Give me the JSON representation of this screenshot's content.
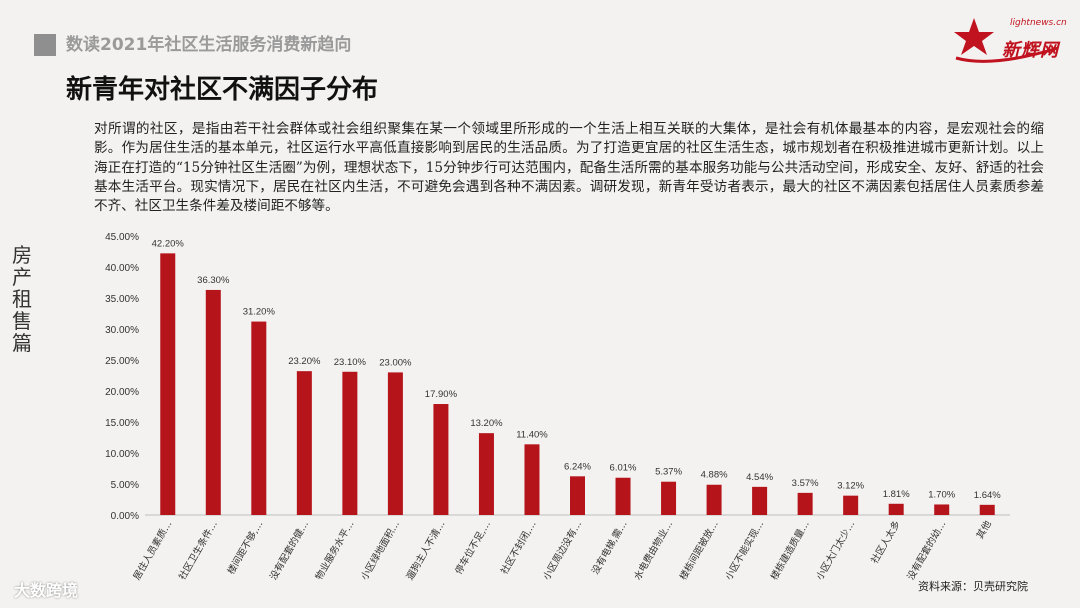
{
  "header": {
    "section_title": "数读2021年社区生活服务消费新趋向",
    "page_title": "新青年对社区不满因子分布"
  },
  "logo": {
    "url_text": "lightnews.cn",
    "name": "新辉网"
  },
  "intro": "对所谓的社区，是指由若干社会群体或社会组织聚集在某一个领域里所形成的一个生活上相互关联的大集体，是社会有机体最基本的内容，是宏观社会的缩影。作为居住生活的基本单元，社区运行水平高低直接影响到居民的生活品质。为了打造更宜居的社区生活生态，城市规划者在积极推进城市更新计划。以上海正在打造的“15分钟社区生活圈”为例，理想状态下，15分钟步行可达范围内，配备生活所需的基本服务功能与公共活动空间，形成安全、友好、舒适的社会基本生活平台。现实情况下，居民在社区内生活，不可避免会遇到各种不满因素。调研发现，新青年受访者表示，最大的社区不满因素包括居住人员素质参差不齐、社区卫生条件差及楼间距不够等。",
  "side_label": "房产租售篇",
  "source": "资料来源：贝壳研究院",
  "watermark": "大数跨境",
  "chart_data": {
    "type": "bar",
    "categories": [
      "居住人员素质…",
      "社区卫生条件…",
      "楼间距不够,…",
      "没有配套的健…",
      "物业服务水平…",
      "小区绿地面积…",
      "遛狗主人不清…",
      "停车位不足,…",
      "社区不封闭,…",
      "小区周边没有…",
      "没有电梯,需…",
      "水电费由物业…",
      "楼栋间距被放…",
      "小区不能实现…",
      "楼栋建造质量…",
      "小区大门太少…",
      "社区人太多",
      "没有配套的幼…",
      "其他"
    ],
    "values": [
      42.2,
      36.3,
      31.2,
      23.2,
      23.1,
      23.0,
      17.9,
      13.2,
      11.4,
      6.24,
      6.01,
      5.37,
      4.88,
      4.54,
      3.57,
      3.12,
      1.81,
      1.7,
      1.64
    ],
    "value_labels": [
      "42.20%",
      "36.30%",
      "31.20%",
      "23.20%",
      "23.10%",
      "23.00%",
      "17.90%",
      "13.20%",
      "11.40%",
      "6.24%",
      "6.01%",
      "5.37%",
      "4.88%",
      "4.54%",
      "3.57%",
      "3.12%",
      "1.81%",
      "1.70%",
      "1.64%"
    ],
    "yticks": [
      "0.00%",
      "5.00%",
      "10.00%",
      "15.00%",
      "20.00%",
      "25.00%",
      "30.00%",
      "35.00%",
      "40.00%",
      "45.00%"
    ],
    "ylim": [
      0,
      45
    ],
    "bar_color": "#b5141b",
    "grid": false,
    "title": "",
    "xlabel": "",
    "ylabel": ""
  }
}
